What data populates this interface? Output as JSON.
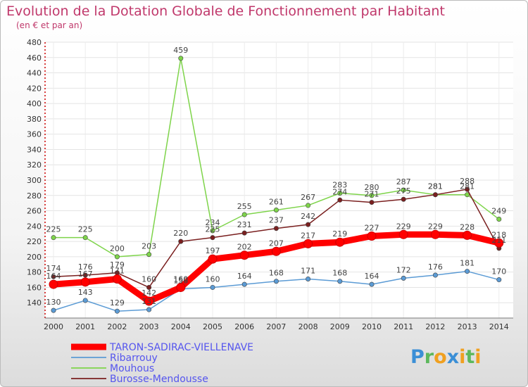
{
  "chart_data": {
    "type": "line",
    "title": "Evolution de la Dotation Globale de Fonctionnement par Habitant",
    "subtitle": "(en € et par an)",
    "categories": [
      "2000",
      "2001",
      "2002",
      "2003",
      "2004",
      "2005",
      "2006",
      "2007",
      "2008",
      "2009",
      "2010",
      "2011",
      "2012",
      "2013",
      "2014"
    ],
    "ylim": [
      120,
      480
    ],
    "yticks": [
      140,
      160,
      180,
      200,
      220,
      240,
      260,
      280,
      300,
      320,
      340,
      360,
      380,
      400,
      420,
      440,
      460,
      480
    ],
    "series": [
      {
        "name": "TARON-SADIRAC-VIELLENAVE",
        "color": "#ff0000",
        "values": [
          164,
          167,
          171,
          142,
          160,
          197,
          202,
          207,
          217,
          219,
          227,
          229,
          229,
          228,
          218
        ]
      },
      {
        "name": "Ribarrouy",
        "color": "#5b9bd5",
        "values": [
          130,
          143,
          129,
          131,
          158,
          160,
          164,
          168,
          171,
          168,
          164,
          172,
          176,
          181,
          170
        ]
      },
      {
        "name": "Mouhous",
        "color": "#7ed44a",
        "values": [
          225,
          225,
          200,
          203,
          459,
          234,
          255,
          261,
          267,
          283,
          280,
          287,
          281,
          281,
          249
        ]
      },
      {
        "name": "Burosse-Mendousse",
        "color": "#7a1f1f",
        "values": [
          174,
          176,
          179,
          160,
          220,
          225,
          231,
          237,
          242,
          274,
          271,
          275,
          281,
          288,
          211
        ]
      }
    ]
  },
  "logo": {
    "text": "Proxiti",
    "colors": [
      "#3b8fd6",
      "#5cb85c",
      "#f0a020",
      "#3b8fd6",
      "#f0a020",
      "#5cb85c",
      "#f0a020"
    ]
  }
}
